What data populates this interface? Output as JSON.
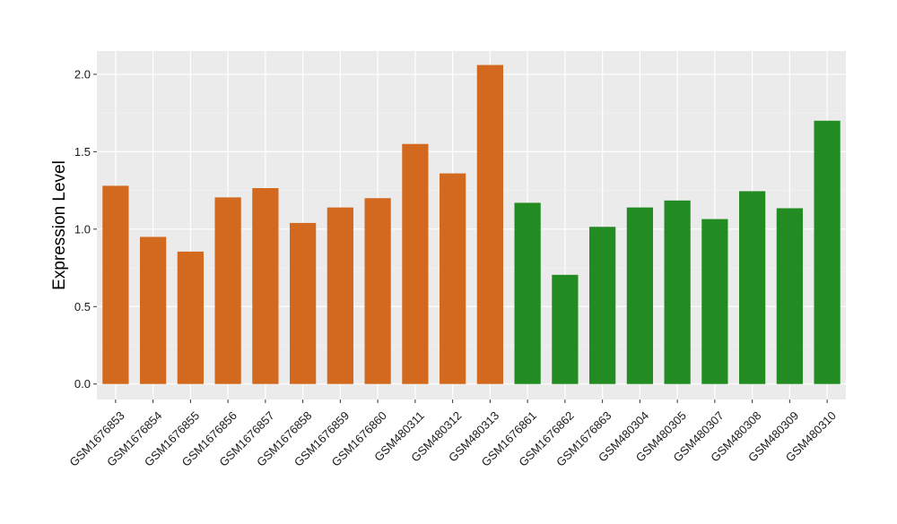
{
  "chart_data": {
    "type": "bar",
    "title": "",
    "xlabel": "",
    "ylabel": "Expression Level",
    "ylim": [
      -0.1,
      2.15
    ],
    "yticks": [
      0.0,
      0.5,
      1.0,
      1.5,
      2.0
    ],
    "ytick_labels": [
      "0.0",
      "0.5",
      "1.0",
      "1.5",
      "2.0"
    ],
    "grid": true,
    "legend": "none",
    "colors": {
      "group_a": "#d2691e",
      "group_b": "#228b22",
      "panel_background": "#ebebeb",
      "grid_major": "#ffffff"
    },
    "categories": [
      "GSM1676853",
      "GSM1676854",
      "GSM1676855",
      "GSM1676856",
      "GSM1676857",
      "GSM1676858",
      "GSM1676859",
      "GSM1676860",
      "GSM480311",
      "GSM480312",
      "GSM480313",
      "GSM1676861",
      "GSM1676862",
      "GSM1676863",
      "GSM480304",
      "GSM480305",
      "GSM480307",
      "GSM480308",
      "GSM480309",
      "GSM480310"
    ],
    "values": [
      1.28,
      0.95,
      0.855,
      1.205,
      1.265,
      1.04,
      1.14,
      1.2,
      1.55,
      1.36,
      2.06,
      1.17,
      0.705,
      1.015,
      1.14,
      1.185,
      1.065,
      1.245,
      1.135,
      1.7
    ],
    "groups": [
      "group_a",
      "group_a",
      "group_a",
      "group_a",
      "group_a",
      "group_a",
      "group_a",
      "group_a",
      "group_a",
      "group_a",
      "group_a",
      "group_b",
      "group_b",
      "group_b",
      "group_b",
      "group_b",
      "group_b",
      "group_b",
      "group_b",
      "group_b"
    ]
  }
}
